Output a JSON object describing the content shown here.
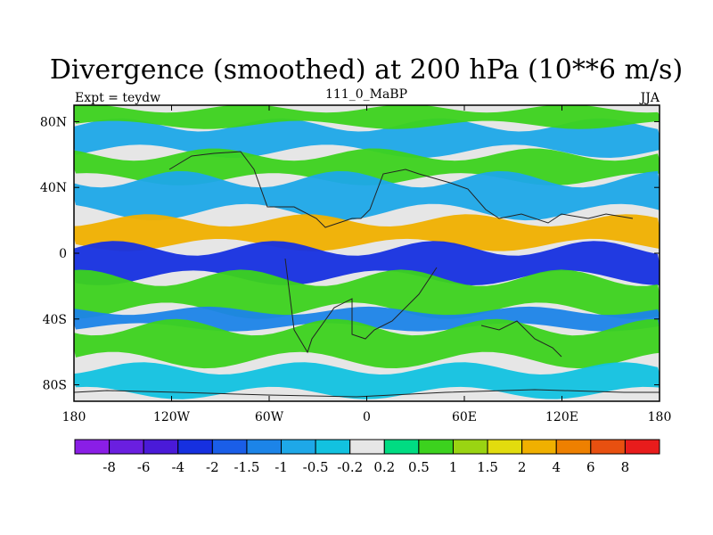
{
  "chart_data": {
    "type": "heatmap",
    "title": "Divergence (smoothed) at 200 hPa (10**6 m/s)",
    "left_string": "Expt = teydw",
    "center_string": "111_0_MaBP",
    "right_string": "JJA",
    "xlim": [
      -180,
      180
    ],
    "ylim": [
      -90,
      90
    ],
    "x_ticks": [
      {
        "value": -180,
        "label": "180"
      },
      {
        "value": -120,
        "label": "120W"
      },
      {
        "value": -60,
        "label": "60W"
      },
      {
        "value": 0,
        "label": "0"
      },
      {
        "value": 60,
        "label": "60E"
      },
      {
        "value": 120,
        "label": "120E"
      },
      {
        "value": 180,
        "label": "180"
      }
    ],
    "y_ticks": [
      {
        "value": 80,
        "label": "80N"
      },
      {
        "value": 40,
        "label": "40N"
      },
      {
        "value": 0,
        "label": "0"
      },
      {
        "value": -40,
        "label": "40S"
      },
      {
        "value": -80,
        "label": "80S"
      }
    ],
    "colorbar": {
      "levels": [
        "-8",
        "-6",
        "-4",
        "-2",
        "-1.5",
        "-1",
        "-0.5",
        "-0.2",
        "0.2",
        "0.5",
        "1",
        "1.5",
        "2",
        "4",
        "6",
        "8"
      ],
      "colors": [
        "#8a1ee6",
        "#6a1fe0",
        "#4a1ad8",
        "#1630e0",
        "#1a5ee8",
        "#1c84e8",
        "#1ea8e8",
        "#12c2e0",
        "#e6e6e6",
        "#00dc82",
        "#3cd21e",
        "#9ad412",
        "#e2dc0e",
        "#f0b000",
        "#ee8000",
        "#e85010",
        "#e81c1c"
      ]
    },
    "bands": [
      {
        "name": "north-polar-cyan",
        "lat": [
          62,
          78
        ],
        "value": -0.7
      },
      {
        "name": "arctic-green",
        "lat": [
          78,
          88
        ],
        "value": 0.6
      },
      {
        "name": "north-mid-green",
        "lat": [
          45,
          60
        ],
        "value": 0.8
      },
      {
        "name": "north-mid-cyan",
        "lat": [
          25,
          45
        ],
        "value": -0.8
      },
      {
        "name": "north-subtropic-orange",
        "lat": [
          5,
          20
        ],
        "value": 2.5
      },
      {
        "name": "equatorial-blue",
        "lat": [
          -15,
          3
        ],
        "value": -2.5
      },
      {
        "name": "south-subtropic-green",
        "lat": [
          -35,
          -15
        ],
        "value": 0.8
      },
      {
        "name": "south-mid-blue",
        "lat": [
          -45,
          -35
        ],
        "value": -1.2
      },
      {
        "name": "south-green",
        "lat": [
          -65,
          -45
        ],
        "value": 0.6
      },
      {
        "name": "antarctic-cyan",
        "lat": [
          -85,
          -70
        ],
        "value": -0.5
      }
    ]
  }
}
